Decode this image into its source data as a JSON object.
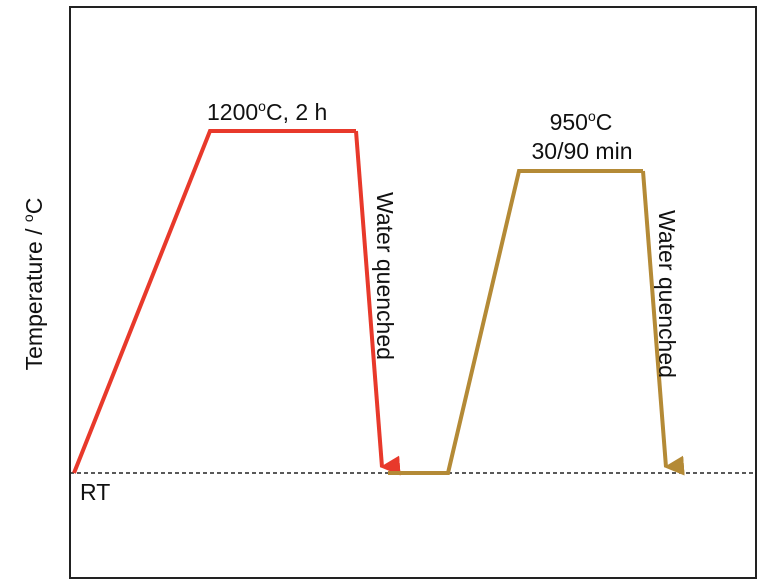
{
  "axis": {
    "y_label_main": "Temperature / ",
    "y_label_sup": "o",
    "y_label_unit": "C",
    "baseline_label": "RT"
  },
  "stages": [
    {
      "temp_value": "1200",
      "temp_sup": "o",
      "temp_unit": "C, 2 h",
      "quench_label": "Water quenched",
      "color": "#e8392b"
    },
    {
      "temp_value": "950",
      "temp_sup": "o",
      "temp_unit": "C",
      "time_label": "30/90 min",
      "quench_label": "Water quenched",
      "color": "#b48a36"
    }
  ],
  "colors": {
    "frame": "#222222",
    "baseline": "#222222"
  }
}
